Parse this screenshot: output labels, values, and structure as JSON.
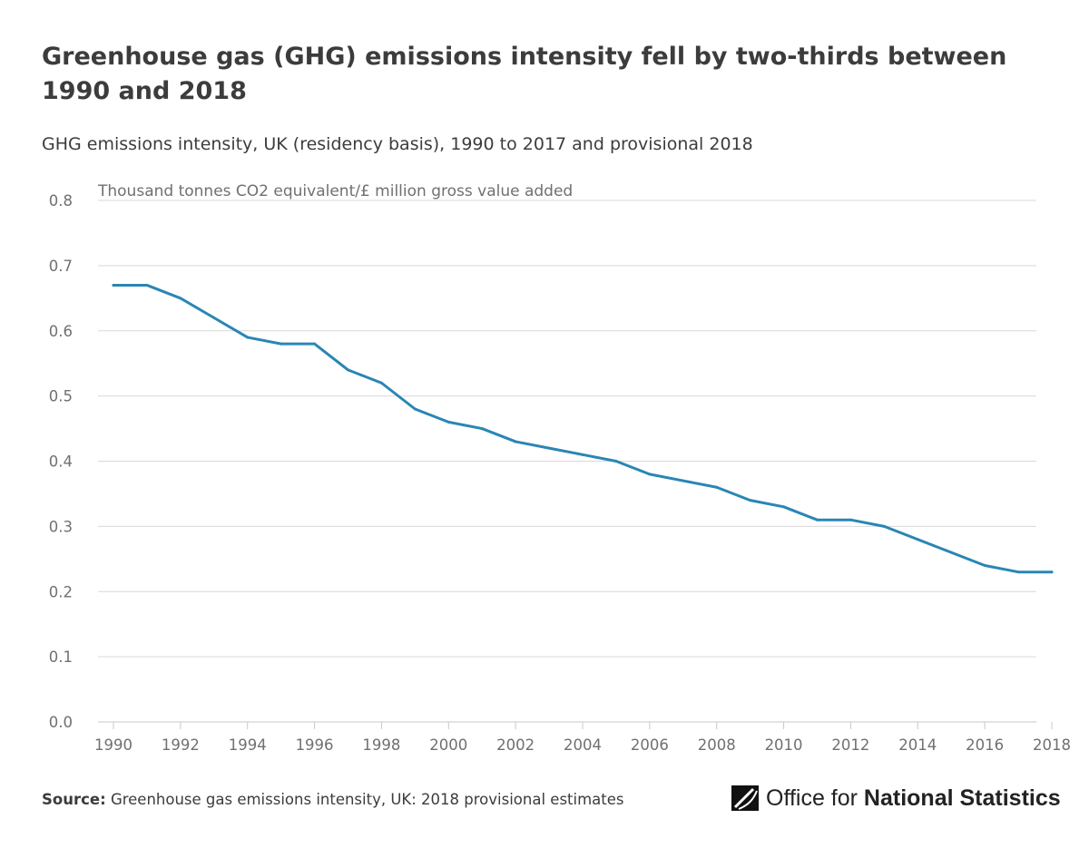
{
  "title": "Greenhouse gas (GHG) emissions intensity fell by two-thirds between 1990 and 2018",
  "subtitle": "GHG emissions intensity, UK (residency basis), 1990 to 2017 and provisional 2018",
  "footer": {
    "source_label": "Source:",
    "source_text": "Greenhouse gas emissions intensity, UK: 2018 provisional estimates",
    "logo_text_light": "Office for ",
    "logo_text_bold": "National Statistics"
  },
  "colors": {
    "line": "#2a86b3",
    "grid": "#d9d9d9",
    "axis_text": "#707070"
  },
  "chart_data": {
    "type": "line",
    "title": "",
    "xlabel": "",
    "ylabel": "Thousand tonnes CO2 equivalent/£ million gross value added",
    "xlim": [
      1990,
      2018
    ],
    "ylim": [
      0.0,
      0.8
    ],
    "x_ticks": [
      "1990",
      "1992",
      "1994",
      "1996",
      "1998",
      "2000",
      "2002",
      "2004",
      "2006",
      "2008",
      "2010",
      "2012",
      "2014",
      "2016",
      "2018"
    ],
    "y_ticks": [
      "0.0",
      "0.1",
      "0.2",
      "0.3",
      "0.4",
      "0.5",
      "0.6",
      "0.7",
      "0.8"
    ],
    "grid": true,
    "series": [
      {
        "name": "",
        "x": [
          1990,
          1991,
          1992,
          1993,
          1994,
          1995,
          1996,
          1997,
          1998,
          1999,
          2000,
          2001,
          2002,
          2003,
          2004,
          2005,
          2006,
          2007,
          2008,
          2009,
          2010,
          2011,
          2012,
          2013,
          2014,
          2015,
          2016,
          2017,
          2018
        ],
        "y": [
          0.67,
          0.67,
          0.65,
          0.62,
          0.59,
          0.58,
          0.58,
          0.54,
          0.52,
          0.48,
          0.46,
          0.45,
          0.43,
          0.42,
          0.41,
          0.4,
          0.38,
          0.37,
          0.36,
          0.34,
          0.33,
          0.31,
          0.31,
          0.3,
          0.28,
          0.26,
          0.24,
          0.23,
          0.23
        ]
      }
    ]
  }
}
